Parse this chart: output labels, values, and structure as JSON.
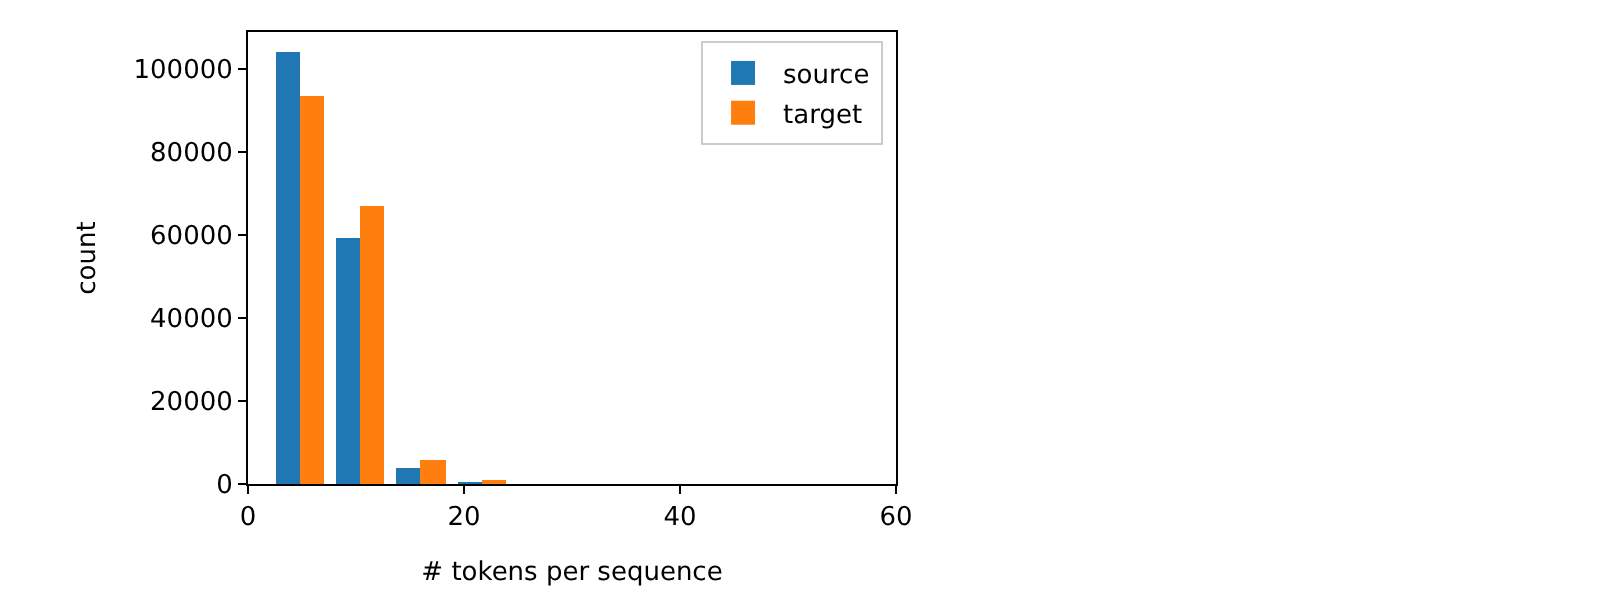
{
  "chart_data": {
    "type": "histogram",
    "xlabel": "# tokens per sequence",
    "ylabel": "count",
    "bins": [
      2,
      7.6,
      13.2,
      18.8,
      24.4,
      30,
      35.6,
      41.2,
      46.8,
      52.4,
      58
    ],
    "series": [
      {
        "name": "source",
        "color": "#1f77b4",
        "values": [
          104000,
          59400,
          3700,
          400,
          0,
          0,
          0,
          0,
          0,
          0
        ]
      },
      {
        "name": "target",
        "color": "#ff7f0e",
        "values": [
          93700,
          67100,
          5600,
          600,
          0,
          0,
          0,
          0,
          0,
          0
        ]
      }
    ],
    "xlim": [
      0,
      60
    ],
    "xticks": [
      0,
      20,
      40,
      60
    ],
    "ylim": [
      0,
      109000
    ],
    "yticks": [
      0,
      20000,
      40000,
      60000,
      80000,
      100000
    ],
    "legend": "top right"
  }
}
